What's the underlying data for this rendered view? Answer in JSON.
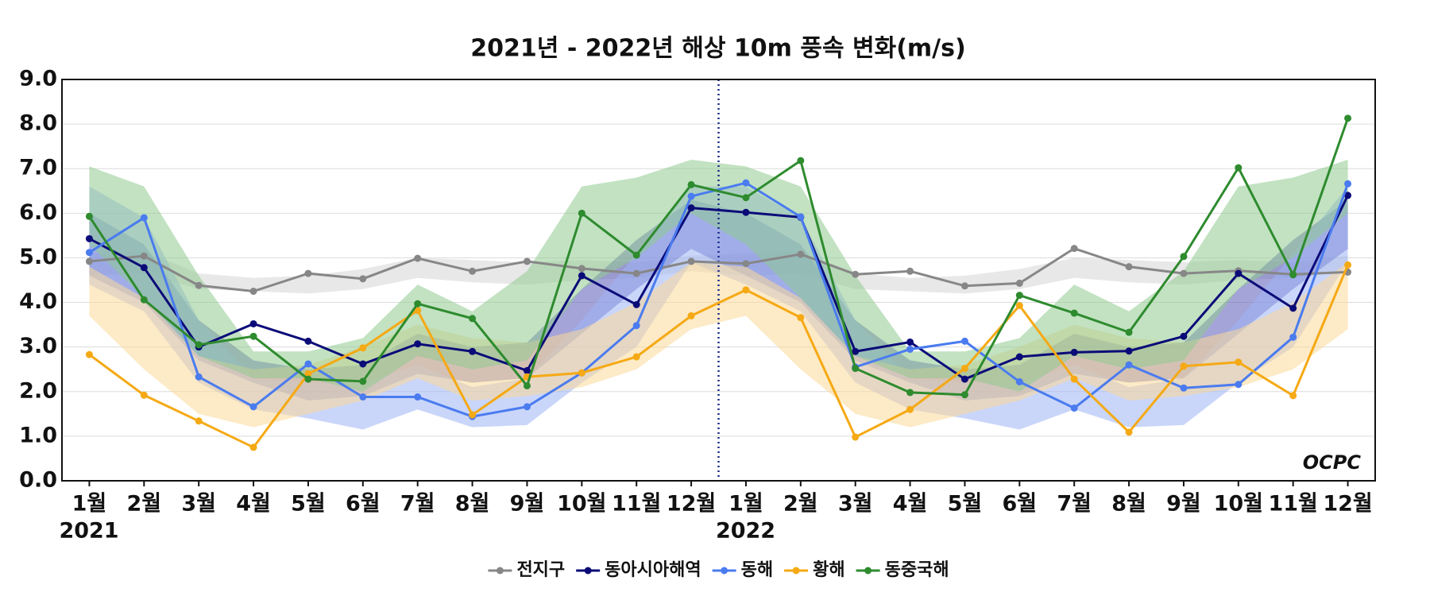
{
  "chart_data": {
    "type": "line",
    "title": "2021년 - 2022년 해상 10m 풍속 변화(m/s)",
    "categories": [
      "1월",
      "2월",
      "3월",
      "4월",
      "5월",
      "6월",
      "7월",
      "8월",
      "9월",
      "10월",
      "11월",
      "12월",
      "1월",
      "2월",
      "3월",
      "4월",
      "5월",
      "6월",
      "7월",
      "8월",
      "9월",
      "10월",
      "11월",
      "12월"
    ],
    "years": [
      "2021",
      "2022"
    ],
    "logo": "OCPC",
    "ylim": [
      0,
      9
    ],
    "yticks": [
      {
        "value": 0,
        "label": "0.0"
      },
      {
        "value": 1,
        "label": "1.0"
      },
      {
        "value": 2,
        "label": "2.0"
      },
      {
        "value": 3,
        "label": "3.0"
      },
      {
        "value": 4,
        "label": "4.0"
      },
      {
        "value": 5,
        "label": "5.0"
      },
      {
        "value": 6,
        "label": "6.0"
      },
      {
        "value": 7,
        "label": "7.0"
      },
      {
        "value": 8,
        "label": "8.0"
      },
      {
        "value": 9,
        "label": "9.0"
      }
    ],
    "grid": true,
    "legend": "bottom",
    "series": [
      {
        "name": "전지구",
        "color": "#878787",
        "band_color": "#d6d6d6",
        "values": [
          4.92,
          5.04,
          4.38,
          4.25,
          4.65,
          4.53,
          4.99,
          4.7,
          4.92,
          4.76,
          4.65,
          4.92,
          4.87,
          5.08,
          4.63,
          4.7,
          4.37,
          4.43,
          5.21,
          4.8,
          4.65,
          4.71,
          4.63,
          4.68
        ],
        "band_low": [
          4.6,
          4.65,
          4.3,
          4.25,
          4.2,
          4.3,
          4.55,
          4.45,
          4.4,
          4.5,
          4.55,
          4.7,
          4.6,
          4.65,
          4.3,
          4.25,
          4.2,
          4.3,
          4.55,
          4.45,
          4.4,
          4.5,
          4.55,
          4.7
        ],
        "band_high": [
          5.1,
          5.15,
          4.65,
          4.55,
          4.6,
          4.75,
          5.0,
          4.95,
          4.9,
          4.95,
          4.9,
          5.05,
          5.1,
          5.15,
          4.65,
          4.55,
          4.6,
          4.75,
          5.0,
          4.95,
          4.9,
          4.95,
          4.9,
          5.05
        ]
      },
      {
        "name": "동아시아해역",
        "color": "#0b0b78",
        "band_color": "#5a5ab8",
        "values": [
          5.43,
          4.78,
          3.0,
          3.52,
          3.13,
          2.62,
          3.07,
          2.9,
          2.47,
          4.6,
          3.95,
          6.12,
          6.02,
          5.91,
          2.9,
          3.11,
          2.28,
          2.78,
          2.88,
          2.91,
          3.24,
          4.65,
          3.87,
          6.4
        ],
        "band_low": [
          4.6,
          4.0,
          2.7,
          2.2,
          1.8,
          1.9,
          2.4,
          2.2,
          2.3,
          3.3,
          4.3,
          5.2,
          4.6,
          4.0,
          2.7,
          2.2,
          1.8,
          1.9,
          2.4,
          2.2,
          2.3,
          3.3,
          4.3,
          5.2
        ],
        "band_high": [
          6.0,
          5.3,
          3.6,
          2.7,
          2.5,
          2.6,
          3.3,
          3.0,
          3.1,
          4.3,
          5.4,
          6.3,
          6.0,
          5.3,
          3.6,
          2.7,
          2.5,
          2.6,
          3.3,
          3.0,
          3.1,
          4.3,
          5.4,
          6.3
        ]
      },
      {
        "name": "동해",
        "color": "#4a7bef",
        "band_color": "#9db4f5",
        "values": [
          5.12,
          5.9,
          2.33,
          1.66,
          2.62,
          1.88,
          1.88,
          1.44,
          1.66,
          2.42,
          3.48,
          6.38,
          6.68,
          5.92,
          2.55,
          2.95,
          3.13,
          2.22,
          1.63,
          2.6,
          2.08,
          2.16,
          3.22,
          6.66
        ],
        "band_low": [
          4.4,
          3.8,
          2.2,
          1.6,
          1.4,
          1.15,
          1.6,
          1.2,
          1.25,
          2.2,
          3.0,
          4.9,
          4.4,
          3.8,
          2.2,
          1.6,
          1.4,
          1.15,
          1.6,
          1.2,
          1.25,
          2.2,
          3.0,
          4.9
        ],
        "band_high": [
          6.6,
          5.9,
          3.6,
          2.3,
          2.2,
          2.2,
          2.6,
          2.1,
          2.3,
          3.6,
          5.1,
          6.6,
          6.6,
          5.9,
          3.6,
          2.3,
          2.2,
          2.2,
          2.6,
          2.1,
          2.3,
          3.6,
          5.1,
          6.6
        ]
      },
      {
        "name": "황해",
        "color": "#f5a914",
        "band_color": "#fbd898",
        "values": [
          2.83,
          1.92,
          1.34,
          0.75,
          2.4,
          2.98,
          3.82,
          1.48,
          2.33,
          2.42,
          2.78,
          3.7,
          4.28,
          3.66,
          0.98,
          1.6,
          2.52,
          3.93,
          2.28,
          1.09,
          2.57,
          2.66,
          1.91,
          4.84
        ],
        "band_low": [
          3.7,
          2.5,
          1.5,
          1.2,
          1.5,
          1.8,
          2.3,
          1.8,
          1.9,
          2.1,
          2.5,
          3.4,
          3.7,
          2.5,
          1.5,
          1.2,
          1.5,
          1.8,
          2.3,
          1.8,
          1.9,
          2.1,
          2.5,
          3.4
        ],
        "band_high": [
          4.8,
          4.1,
          2.8,
          2.5,
          2.6,
          3.0,
          3.5,
          3.2,
          3.1,
          3.4,
          4.0,
          4.9,
          4.8,
          4.1,
          2.8,
          2.5,
          2.6,
          3.0,
          3.5,
          3.2,
          3.1,
          3.4,
          4.0,
          4.9
        ]
      },
      {
        "name": "동중국해",
        "color": "#2e8b2e",
        "band_color": "#8fcb8f",
        "values": [
          5.93,
          4.06,
          3.05,
          3.24,
          2.28,
          2.23,
          3.97,
          3.64,
          2.13,
          6.0,
          5.06,
          6.64,
          6.35,
          7.18,
          2.52,
          1.98,
          1.93,
          4.16,
          3.76,
          3.33,
          5.03,
          7.02,
          4.62,
          8.13
        ],
        "band_low": [
          5.3,
          4.1,
          2.8,
          2.3,
          2.3,
          2.0,
          2.8,
          2.5,
          2.7,
          4.3,
          5.0,
          6.0,
          5.3,
          4.1,
          2.8,
          2.3,
          2.3,
          2.0,
          2.8,
          2.5,
          2.7,
          4.3,
          5.0,
          6.0
        ],
        "band_high": [
          7.05,
          6.6,
          4.6,
          2.9,
          2.9,
          3.2,
          4.4,
          3.8,
          4.7,
          6.6,
          6.8,
          7.2,
          7.05,
          6.6,
          4.6,
          2.9,
          2.9,
          3.2,
          4.4,
          3.8,
          4.7,
          6.6,
          6.8,
          7.2
        ]
      }
    ]
  }
}
